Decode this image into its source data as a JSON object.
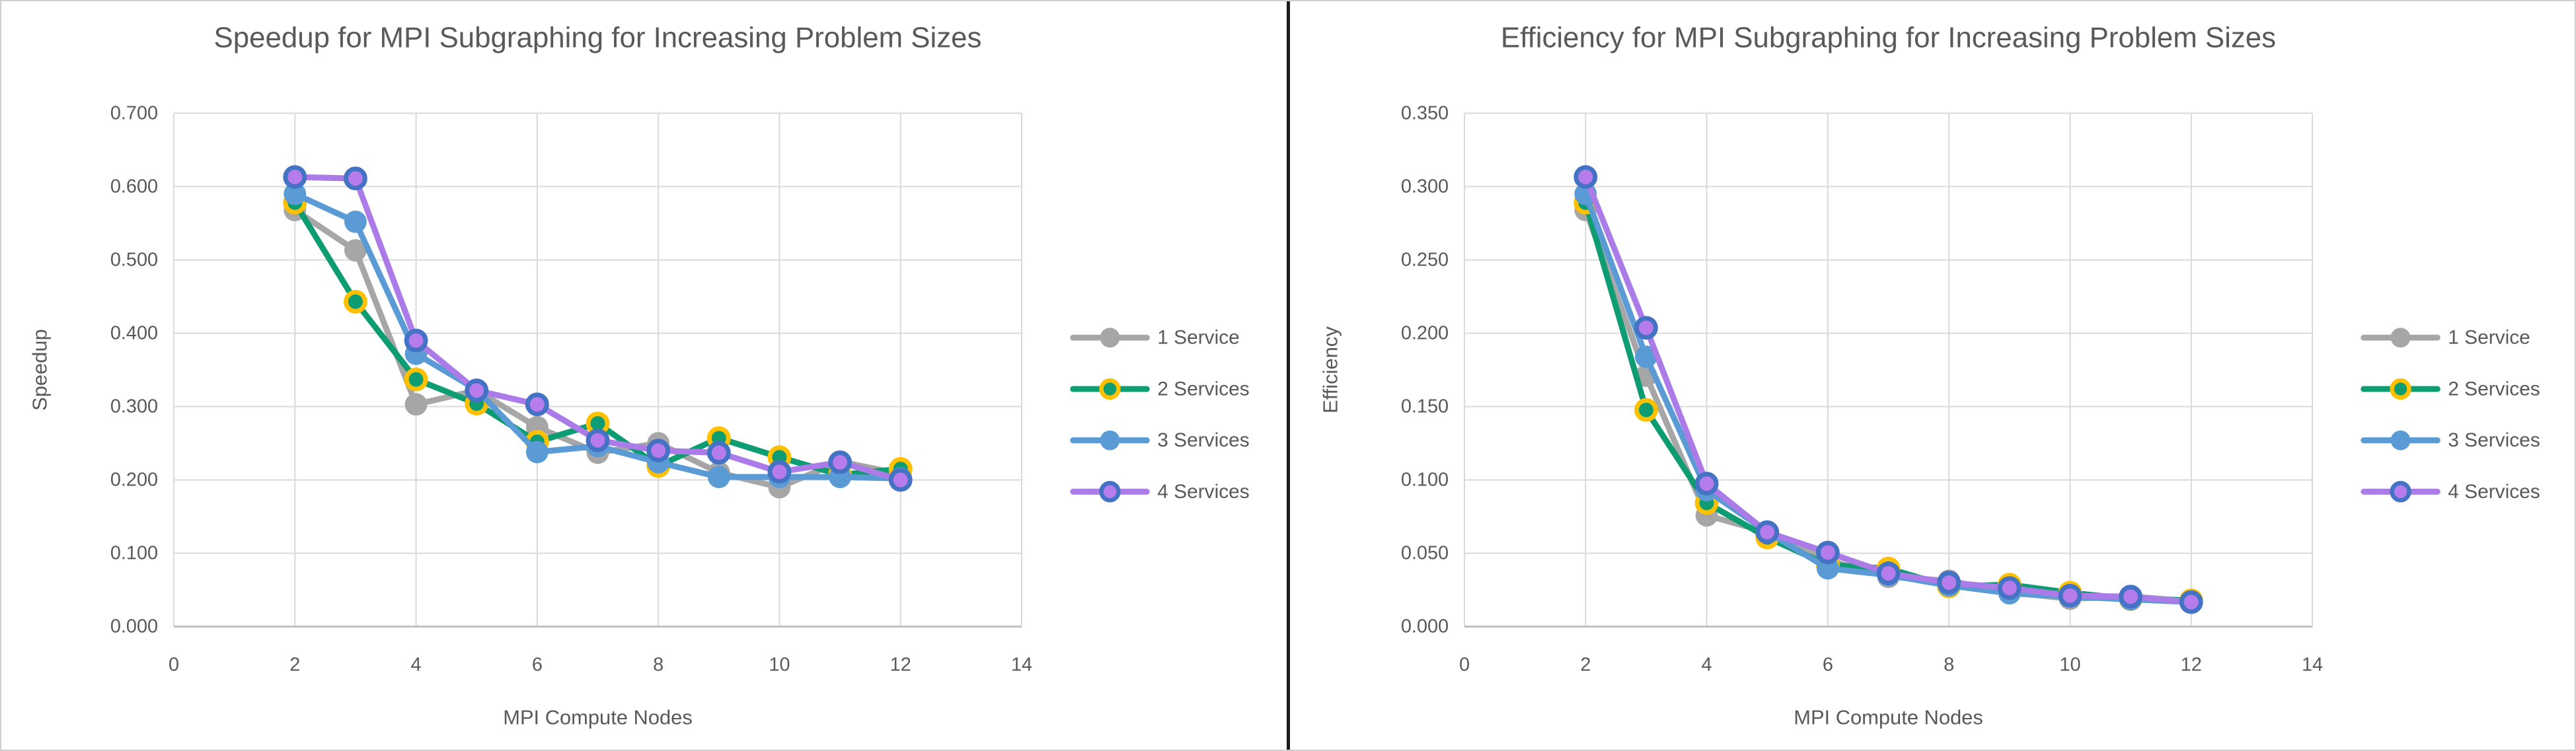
{
  "page": {
    "background": "#ffffff",
    "outer_border_color": "#cfcfcf",
    "divider_color": "#1c1c1c",
    "text_color": "#595959",
    "gridline_color": "#d9d9d9",
    "axis_line_color": "#bfbfbf"
  },
  "legend": {
    "items": [
      "1 Service",
      "2 Services",
      "3 Services",
      "4 Services"
    ]
  },
  "chart_data": [
    {
      "type": "line",
      "title": "Speedup for MPI Subgraphing for Increasing Problem Sizes",
      "xlabel": "MPI Compute Nodes",
      "ylabel": "Speedup",
      "x": [
        2,
        3,
        4,
        5,
        6,
        7,
        8,
        9,
        10,
        11,
        12
      ],
      "xlim": [
        0,
        14
      ],
      "xtick_step": 2,
      "ylim": [
        0,
        0.7
      ],
      "ytick_step": 0.1,
      "ytick_decimals": 3,
      "grid": true,
      "legend_position": "right",
      "series": [
        {
          "name": "1 Service",
          "color": "#a6a6a6",
          "marker_fill": "#a6a6a6",
          "marker_edge": "#a6a6a6",
          "values": [
            0.568,
            0.513,
            0.303,
            0.322,
            0.272,
            0.237,
            0.25,
            0.21,
            0.19,
            0.225,
            0.208
          ]
        },
        {
          "name": "2 Services",
          "color": "#0e9c72",
          "marker_fill": "#0e9c72",
          "marker_edge": "#ffc000",
          "values": [
            0.578,
            0.443,
            0.337,
            0.304,
            0.252,
            0.277,
            0.219,
            0.257,
            0.231,
            0.207,
            0.215
          ]
        },
        {
          "name": "3 Services",
          "color": "#5b9bd5",
          "marker_fill": "#5b9bd5",
          "marker_edge": "#5b9bd5",
          "values": [
            0.59,
            0.552,
            0.372,
            0.323,
            0.238,
            0.246,
            0.224,
            0.204,
            0.204,
            0.204,
            0.202
          ]
        },
        {
          "name": "4 Services",
          "color": "#ab7be8",
          "marker_fill": "#b77ceb",
          "marker_edge": "#4472c4",
          "values": [
            0.613,
            0.611,
            0.39,
            0.322,
            0.303,
            0.254,
            0.24,
            0.237,
            0.211,
            0.224,
            0.2
          ]
        }
      ]
    },
    {
      "type": "line",
      "title": "Efficiency for MPI Subgraphing for Increasing Problem Sizes",
      "xlabel": "MPI Compute Nodes",
      "ylabel": "Efficiency",
      "x": [
        2,
        3,
        4,
        5,
        6,
        7,
        8,
        9,
        10,
        11,
        12
      ],
      "xlim": [
        0,
        14
      ],
      "xtick_step": 2,
      "ylim": [
        0,
        0.35
      ],
      "ytick_step": 0.05,
      "ytick_decimals": 3,
      "grid": true,
      "legend_position": "right",
      "series": [
        {
          "name": "1 Service",
          "color": "#a6a6a6",
          "marker_fill": "#a6a6a6",
          "marker_edge": "#a6a6a6",
          "values": [
            0.284,
            0.171,
            0.0758,
            0.0644,
            0.0453,
            0.0339,
            0.0313,
            0.0233,
            0.019,
            0.0205,
            0.0173
          ]
        },
        {
          "name": "2 Services",
          "color": "#0e9c72",
          "marker_fill": "#0e9c72",
          "marker_edge": "#ffc000",
          "values": [
            0.289,
            0.1477,
            0.0843,
            0.0608,
            0.042,
            0.0396,
            0.0274,
            0.0286,
            0.0231,
            0.0188,
            0.0179
          ]
        },
        {
          "name": "3 Services",
          "color": "#5b9bd5",
          "marker_fill": "#5b9bd5",
          "marker_edge": "#5b9bd5",
          "values": [
            0.295,
            0.184,
            0.093,
            0.0646,
            0.0397,
            0.0351,
            0.028,
            0.0227,
            0.0204,
            0.0185,
            0.0168
          ]
        },
        {
          "name": "4 Services",
          "color": "#ab7be8",
          "marker_fill": "#b77ceb",
          "marker_edge": "#4472c4",
          "values": [
            0.3065,
            0.2037,
            0.0975,
            0.0644,
            0.0505,
            0.0363,
            0.03,
            0.0263,
            0.0211,
            0.0204,
            0.0167
          ]
        }
      ]
    }
  ]
}
